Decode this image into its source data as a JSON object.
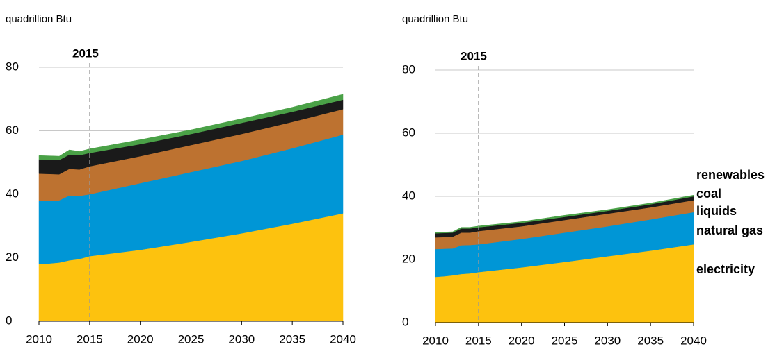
{
  "chart_data": [
    {
      "type": "area",
      "y_label": "quadrillion Btu",
      "x": [
        2010,
        2011,
        2012,
        2013,
        2014,
        2015,
        2020,
        2025,
        2030,
        2035,
        2040
      ],
      "xlim": [
        2010,
        2040
      ],
      "ylim": [
        0,
        80
      ],
      "xticks": [
        2010,
        2015,
        2020,
        2025,
        2030,
        2035,
        2040
      ],
      "yticks": [
        0,
        20,
        40,
        60,
        80
      ],
      "grid": true,
      "annotation": {
        "text": "2015",
        "x": 2015
      },
      "series": [
        {
          "color": "#fdc20e",
          "values": [
            18,
            18.2,
            18.5,
            19.2,
            19.6,
            20.5,
            22.5,
            25,
            27.7,
            30.7,
            34
          ]
        },
        {
          "color": "#0096d6",
          "values": [
            20,
            19.8,
            19.6,
            20.4,
            19.9,
            19.5,
            21,
            22,
            22.8,
            23.8,
            24.8
          ]
        },
        {
          "color": "#bd7230",
          "values": [
            8.5,
            8.4,
            8.2,
            8.4,
            8.3,
            8.8,
            8.5,
            8.5,
            8.5,
            8.3,
            8
          ]
        },
        {
          "color": "#1a1a1a",
          "values": [
            4.5,
            4.5,
            4.5,
            4.5,
            4.5,
            4.2,
            3.8,
            3.5,
            3.5,
            3.2,
            3
          ]
        },
        {
          "color": "#4aa147",
          "values": [
            1.2,
            1.2,
            1.2,
            1.5,
            1.2,
            1.3,
            1.4,
            1.3,
            1.3,
            1.4,
            1.7
          ]
        }
      ]
    },
    {
      "type": "area",
      "y_label": "quadrillion Btu",
      "x": [
        2010,
        2011,
        2012,
        2013,
        2014,
        2015,
        2020,
        2025,
        2030,
        2035,
        2040
      ],
      "xlim": [
        2010,
        2040
      ],
      "ylim": [
        0,
        80
      ],
      "xticks": [
        2010,
        2015,
        2020,
        2025,
        2030,
        2035,
        2040
      ],
      "yticks": [
        0,
        20,
        40,
        60,
        80
      ],
      "grid": true,
      "legend": "right",
      "annotation": {
        "text": "2015",
        "x": 2015
      },
      "series": [
        {
          "name": "electricity",
          "color": "#fdc20e",
          "values": [
            14.5,
            14.7,
            15,
            15.4,
            15.6,
            16,
            17.5,
            19.2,
            21,
            22.8,
            24.8
          ]
        },
        {
          "name": "natural gas",
          "color": "#0096d6",
          "values": [
            8.8,
            8.7,
            8.5,
            9.1,
            9,
            8.8,
            9,
            9.3,
            9.5,
            9.9,
            10.2
          ]
        },
        {
          "name": "liquids",
          "color": "#bd7230",
          "values": [
            3.7,
            3.7,
            3.7,
            4,
            3.9,
            4.2,
            4,
            4,
            4,
            3.8,
            3.8
          ]
        },
        {
          "name": "coal",
          "color": "#1a1a1a",
          "values": [
            1.3,
            1.3,
            1.3,
            1.3,
            1.3,
            1.2,
            1.1,
            1,
            0.9,
            1,
            1.2
          ]
        },
        {
          "name": "renewables",
          "color": "#4aa147",
          "values": [
            0.3,
            0.3,
            0.3,
            0.4,
            0.4,
            0.4,
            0.4,
            0.5,
            0.4,
            0.4,
            0.4
          ]
        }
      ]
    }
  ]
}
